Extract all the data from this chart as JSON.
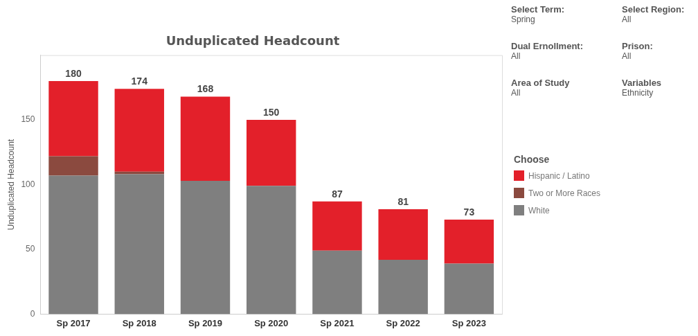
{
  "chart_data": {
    "type": "bar",
    "title": "Unduplicated Headcount",
    "ylabel": "Unduplicated Headcount",
    "legend_title": "Choose",
    "legend": "right",
    "stacked": true,
    "categories": [
      "Sp 2017",
      "Sp 2018",
      "Sp 2019",
      "Sp 2020",
      "Sp 2021",
      "Sp 2022",
      "Sp 2023"
    ],
    "series": [
      {
        "name": "White",
        "color": "#7f7f7f",
        "values": [
          107,
          108,
          103,
          99,
          49,
          42,
          39
        ]
      },
      {
        "name": "Two or More Races",
        "color": "#8b4a3f",
        "values": [
          15,
          2,
          0,
          0,
          0,
          0,
          0
        ]
      },
      {
        "name": "Hispanic / Latino",
        "color": "#e3202a",
        "values": [
          58,
          64,
          65,
          51,
          38,
          39,
          34
        ]
      }
    ],
    "totals": [
      "180",
      "174",
      "168",
      "150",
      "87",
      "81",
      "73"
    ],
    "ylim": [
      0,
      200
    ],
    "yticks": [
      0,
      50,
      100,
      150
    ],
    "grid": false,
    "annotations": [
      "Select Term:",
      "Spring",
      "Select Region:",
      "All",
      "Dual Ernollment:",
      "All",
      "Prison:",
      "All",
      "Area of Study",
      "All",
      "Variables",
      "Ethnicity"
    ]
  }
}
